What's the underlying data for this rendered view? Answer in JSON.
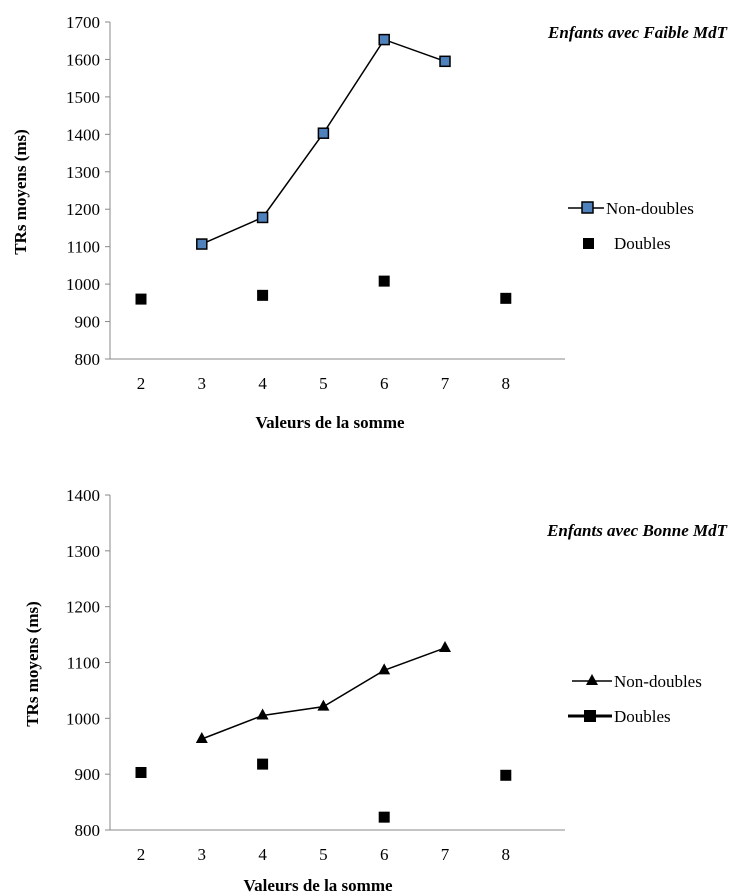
{
  "chart_data": [
    {
      "type": "line",
      "title": "Enfants avec Faible MdT",
      "xlabel": "Valeurs de la somme",
      "ylabel": "TRs moyens (ms)",
      "x_ticks": [
        "2",
        "3",
        "4",
        "5",
        "6",
        "7",
        "8"
      ],
      "ylim": [
        800,
        1700
      ],
      "y_ticks": [
        "800",
        "900",
        "1000",
        "1100",
        "1200",
        "1300",
        "1400",
        "1500",
        "1600",
        "1700"
      ],
      "grid": false,
      "legend_position": "right",
      "series": [
        {
          "name": "Non-doubles",
          "style": "line-square-blue",
          "points": [
            {
              "x": 3,
              "y": 1107
            },
            {
              "x": 4,
              "y": 1178
            },
            {
              "x": 5,
              "y": 1403
            },
            {
              "x": 6,
              "y": 1653
            },
            {
              "x": 7,
              "y": 1595
            }
          ]
        },
        {
          "name": "Doubles",
          "style": "square",
          "points": [
            {
              "x": 2,
              "y": 960
            },
            {
              "x": 4,
              "y": 970
            },
            {
              "x": 6,
              "y": 1008
            },
            {
              "x": 8,
              "y": 962
            }
          ]
        }
      ]
    },
    {
      "type": "line",
      "title": "Enfants avec Bonne MdT",
      "xlabel": "Valeurs de la somme",
      "ylabel": "TRs moyens (ms)",
      "x_ticks": [
        "2",
        "3",
        "4",
        "5",
        "6",
        "7",
        "8"
      ],
      "ylim": [
        800,
        1400
      ],
      "y_ticks": [
        "800",
        "900",
        "1000",
        "1100",
        "1200",
        "1300",
        "1400"
      ],
      "grid": false,
      "legend_position": "right",
      "series": [
        {
          "name": "Non-doubles",
          "style": "line-triangle",
          "points": [
            {
              "x": 3,
              "y": 963
            },
            {
              "x": 4,
              "y": 1005
            },
            {
              "x": 5,
              "y": 1021
            },
            {
              "x": 6,
              "y": 1086
            },
            {
              "x": 7,
              "y": 1126
            }
          ]
        },
        {
          "name": "Doubles",
          "style": "square",
          "points": [
            {
              "x": 2,
              "y": 903
            },
            {
              "x": 4,
              "y": 918
            },
            {
              "x": 6,
              "y": 823
            },
            {
              "x": 8,
              "y": 898
            }
          ]
        }
      ]
    }
  ],
  "colors": {
    "axis": "#888888",
    "line": "#000000",
    "marker_fill_blue": "#4f81bd",
    "marker_fill_black": "#000000"
  }
}
